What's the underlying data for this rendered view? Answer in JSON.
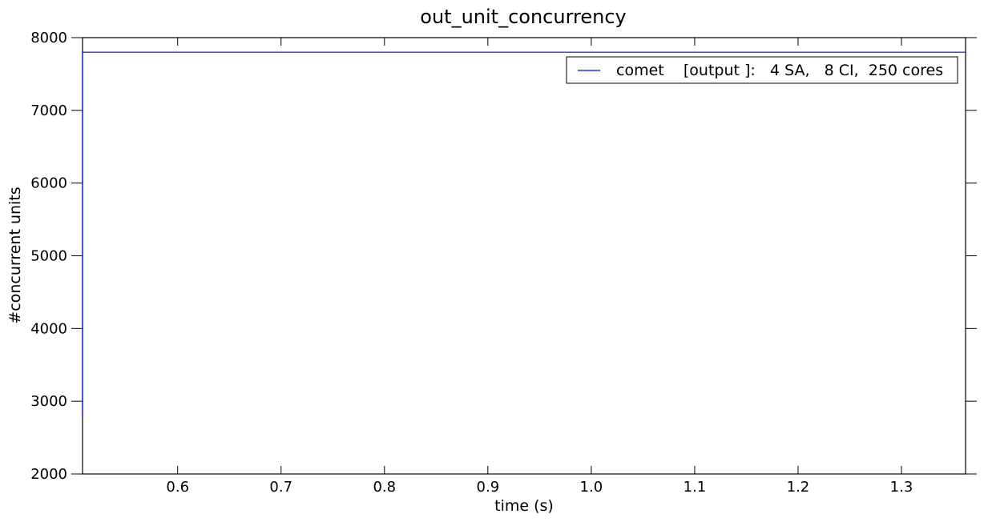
{
  "chart_data": {
    "type": "line",
    "title": "out_unit_concurrency",
    "xlabel": "time (s)",
    "ylabel": "#concurrent units",
    "xlim": [
      0.508,
      1.362
    ],
    "ylim": [
      2000,
      8000
    ],
    "x_ticks": [
      0.6,
      0.7,
      0.8,
      0.9,
      1.0,
      1.1,
      1.2,
      1.3
    ],
    "x_tick_labels": [
      "0.6",
      "0.7",
      "0.8",
      "0.9",
      "1.0",
      "1.1",
      "1.2",
      "1.3"
    ],
    "y_ticks": [
      2000,
      3000,
      4000,
      5000,
      6000,
      7000,
      8000
    ],
    "y_tick_labels": [
      "2000",
      "3000",
      "4000",
      "5000",
      "6000",
      "7000",
      "8000"
    ],
    "grid": false,
    "legend_position": "top-right",
    "series": [
      {
        "name": "comet    [output ]:   4 SA,   8 CI,  250 cores",
        "color": "#0000ff",
        "x": [
          0.508,
          0.508,
          1.362
        ],
        "y": [
          2800,
          7800,
          7800
        ]
      }
    ]
  }
}
